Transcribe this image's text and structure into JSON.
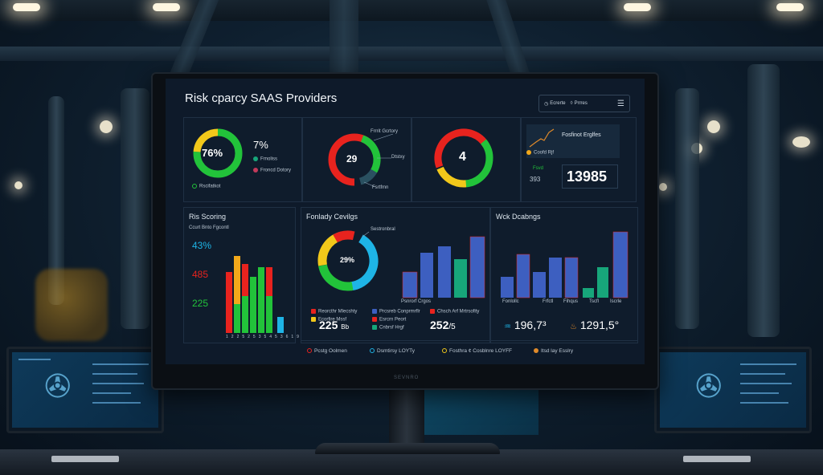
{
  "dashboard": {
    "title": "Risk cparcy SAAS Providers",
    "toolbar": {
      "item1": "Ecrerte",
      "item2": "Prrres"
    }
  },
  "top_cards": {
    "card1": {
      "ring_value": "76%",
      "side_value": "7%",
      "label_a": "Frnoliss",
      "label_b": "Froncd Dotory",
      "footer": "Rscifatkot",
      "ring_fraction": 0.76
    },
    "card2": {
      "ring_value": "29",
      "label_a": "Frrrit Gcrtory",
      "label_b": "Dtstxy",
      "label_c": "Fsrtfmn"
    },
    "card3": {
      "ring_value": "4"
    },
    "card4": {
      "chart_title": "Fosfinot Erglfes",
      "legend": "Coofd Rjf",
      "label_small": "Fsvd",
      "sub_value": "393",
      "value": "13985"
    }
  },
  "risk_scoring": {
    "title": "Ris Scoring",
    "subtitle": "Ccurt Bnto Fgcontl",
    "values": [
      "43%",
      "485",
      "225"
    ],
    "x_ticks": [
      "12",
      "25",
      "25",
      "35",
      "45",
      "36",
      "19"
    ]
  },
  "portfolio": {
    "title": "Fonlady Cevilgs",
    "ring_value": "29%",
    "ring_note": "Sestronbral",
    "bar_caption": "Psnrorf Crgos",
    "legend_left": [
      "Reorcthr Mlecshty",
      "Ecorfire Mssf"
    ],
    "legend_mid": [
      "Prcsreb Conprmrflr",
      "Esrcrn Peort",
      "Cnbrsf Hrgf"
    ],
    "legend_right": [
      "Chsch Arf Mrtrsofity"
    ],
    "value_left": "225",
    "value_left_unit": "Bb",
    "value_right": "252",
    "value_right_unit": "/5"
  },
  "work": {
    "title": "Wck Dcabngs",
    "x_labels": [
      "Fonlollc",
      "Frfctl",
      "Fihqus",
      "Tscfl",
      "Iscrle"
    ],
    "value_a": "196,7³",
    "value_b": "1291,5°"
  },
  "footer_legend": [
    "Pcstg Oolmen",
    "Dsmtirsy LOYTy",
    "Fosthra ¢ Cosblnre LOYFF",
    "Itsd lay Esslry"
  ],
  "colors": {
    "green": "#22c33a",
    "yellow": "#f2c81a",
    "red": "#e8231e",
    "blue": "#3d5fc0",
    "cyan": "#1eb4e6",
    "teal": "#17a67a"
  },
  "bezel_brand": "SEVNRO"
}
